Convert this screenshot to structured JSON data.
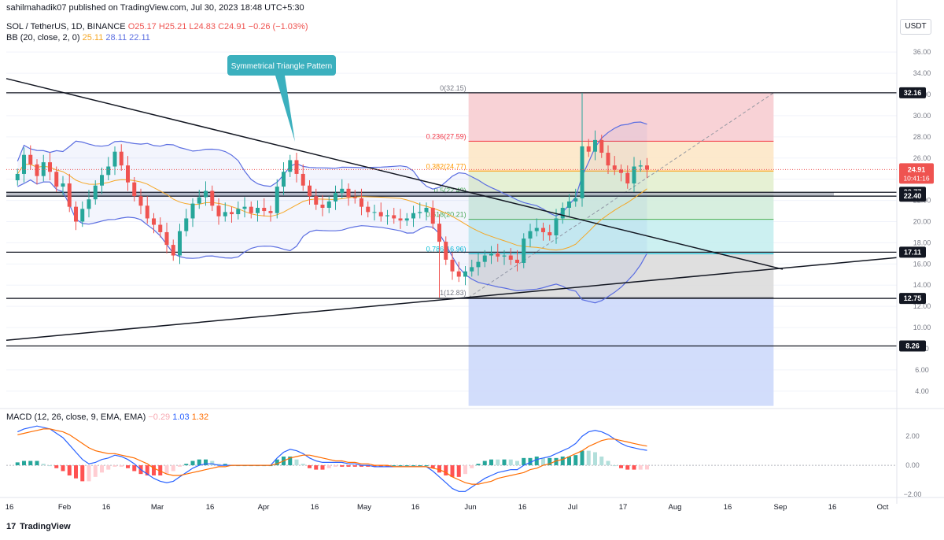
{
  "publisher": "sahilmahadik07 published on TradingView.com, Jul 30, 2023 18:48 UTC+5:30",
  "symbol": {
    "name": "SOL / TetherUS, 1D, BINANCE",
    "o": "O25.17",
    "h": "H25.21",
    "l": "L24.83",
    "c": "C24.91",
    "chg": "−0.26 (−1.03%)"
  },
  "bb_legend": {
    "name": "BB (20, close, 2, 0)",
    "basis": "25.11",
    "upper": "28.11",
    "lower": "22.11"
  },
  "macd_legend": {
    "name": "MACD (12, 26, close, 9, EMA, EMA)",
    "hist": "−0.29",
    "macd": "1.03",
    "signal": "1.32"
  },
  "currency": "USDT",
  "footer_logo": "TradingView",
  "annotation": "Symmetrical Triangle Pattern",
  "colors": {
    "up": "#26a69a",
    "down": "#ef5350",
    "bb": "#5b6ee1",
    "basis": "#f5a623",
    "macd": "#2962ff",
    "signal": "#ff6d00",
    "fib_red": "#f7cdd2",
    "fib_orange": "#fde7c7",
    "fib_green": "#d3eddb",
    "fib_teal": "#c6eef0",
    "fib_grey": "#dcdcdc",
    "fib_blue": "#cdd9fb"
  },
  "chart_data": [
    {
      "type": "candlestick",
      "ylim": [
        2.5,
        37.5
      ],
      "y_ticks": [
        "4.00",
        "6.00",
        "8.00",
        "10.00",
        "12.00",
        "14.00",
        "16.00",
        "18.00",
        "20.00",
        "22.00",
        "24.00",
        "26.00",
        "28.00",
        "30.00",
        "32.00",
        "34.00",
        "36.00"
      ],
      "x_ticks": [
        "16",
        "Feb",
        "16",
        "Mar",
        "16",
        "Apr",
        "16",
        "May",
        "16",
        "Jun",
        "16",
        "Jul",
        "17",
        "Aug",
        "16",
        "Sep",
        "16",
        "Oct"
      ],
      "horizontal_levels": [
        {
          "value": 32.16,
          "label": "32.16"
        },
        {
          "value": 22.77,
          "label": "22.77"
        },
        {
          "value": 22.4,
          "label": "22.40"
        },
        {
          "value": 17.11,
          "label": "17.11"
        },
        {
          "value": 12.75,
          "label": "12.75"
        },
        {
          "value": 8.26,
          "label": "8.26"
        }
      ],
      "last_price": {
        "value": 24.91,
        "label": "24.91",
        "countdown": "10:41:16"
      },
      "fib_levels": [
        {
          "ratio": "0",
          "price": 32.15,
          "label": "0(32.15)"
        },
        {
          "ratio": "0.236",
          "price": 27.59,
          "label": "0.236(27.59)"
        },
        {
          "ratio": "0.382",
          "price": 24.77,
          "label": "0.382(24.77)"
        },
        {
          "ratio": "0.5",
          "price": 22.49,
          "label": "0.5(22.49)"
        },
        {
          "ratio": "0.618",
          "price": 20.21,
          "label": "0.618(20.21)"
        },
        {
          "ratio": "0.786",
          "price": 16.96,
          "label": "0.786(16.96)"
        },
        {
          "ratio": "1",
          "price": 12.83,
          "label": "1(12.83)"
        }
      ],
      "trendlines": [
        {
          "name": "descending resistance",
          "from_price": 33.5,
          "to_price": 15.5
        },
        {
          "name": "ascending support",
          "from_price": 8.8,
          "to_price": 16.6
        }
      ],
      "price_path": [
        [
          1,
          24.5
        ],
        [
          2,
          26.3
        ],
        [
          3,
          25.4
        ],
        [
          4,
          24.3
        ],
        [
          5,
          25.6
        ],
        [
          6,
          24.7
        ],
        [
          7,
          23.3
        ],
        [
          8,
          23.6
        ],
        [
          9,
          21.4
        ],
        [
          10,
          20.0
        ],
        [
          11,
          21.2
        ],
        [
          12,
          22.1
        ],
        [
          13,
          23.4
        ],
        [
          14,
          24.4
        ],
        [
          15,
          25.2
        ],
        [
          16,
          26.6
        ],
        [
          17,
          25.3
        ],
        [
          18,
          23.7
        ],
        [
          19,
          22.4
        ],
        [
          20,
          21.5
        ],
        [
          21,
          20.3
        ],
        [
          22,
          19.7
        ],
        [
          23,
          19.0
        ],
        [
          24,
          17.8
        ],
        [
          25,
          16.8
        ],
        [
          26,
          19.1
        ],
        [
          27,
          20.3
        ],
        [
          28,
          21.7
        ],
        [
          29,
          22.3
        ],
        [
          30,
          22.9
        ],
        [
          31,
          21.5
        ],
        [
          32,
          20.5
        ],
        [
          33,
          20.9
        ],
        [
          34,
          20.7
        ],
        [
          35,
          21.2
        ],
        [
          36,
          21.4
        ],
        [
          37,
          20.8
        ],
        [
          38,
          21.3
        ],
        [
          39,
          21.0
        ],
        [
          40,
          20.8
        ],
        [
          41,
          23.3
        ],
        [
          42,
          24.7
        ],
        [
          43,
          25.8
        ],
        [
          44,
          24.5
        ],
        [
          45,
          23.4
        ],
        [
          46,
          22.4
        ],
        [
          47,
          21.6
        ],
        [
          48,
          21.3
        ],
        [
          49,
          21.9
        ],
        [
          50,
          22.7
        ],
        [
          51,
          23.1
        ],
        [
          52,
          22.3
        ],
        [
          53,
          22.2
        ],
        [
          54,
          21.4
        ],
        [
          55,
          20.9
        ],
        [
          56,
          20.9
        ],
        [
          57,
          20.5
        ],
        [
          58,
          20.6
        ],
        [
          59,
          20.3
        ],
        [
          60,
          20.1
        ],
        [
          61,
          20.3
        ],
        [
          62,
          20.8
        ],
        [
          63,
          20.9
        ],
        [
          64,
          21.3
        ],
        [
          65,
          19.8
        ],
        [
          66,
          18.1
        ],
        [
          67,
          16.4
        ],
        [
          68,
          15.3
        ],
        [
          69,
          14.8
        ],
        [
          70,
          15.3
        ],
        [
          71,
          15.7
        ],
        [
          72,
          16.2
        ],
        [
          73,
          16.8
        ],
        [
          74,
          17.0
        ],
        [
          75,
          16.7
        ],
        [
          76,
          16.8
        ],
        [
          77,
          16.4
        ],
        [
          78,
          16.1
        ],
        [
          79,
          18.4
        ],
        [
          80,
          19.1
        ],
        [
          81,
          19.4
        ],
        [
          82,
          19.0
        ],
        [
          83,
          18.7
        ],
        [
          84,
          20.3
        ],
        [
          85,
          21.3
        ],
        [
          86,
          21.9
        ],
        [
          87,
          22.2
        ],
        [
          88,
          27.1
        ],
        [
          89,
          26.6
        ],
        [
          90,
          27.7
        ],
        [
          91,
          26.5
        ],
        [
          92,
          25.3
        ],
        [
          93,
          24.9
        ],
        [
          94,
          24.6
        ],
        [
          95,
          23.6
        ],
        [
          96,
          25.2
        ],
        [
          97,
          25.3
        ],
        [
          98,
          24.91
        ]
      ]
    },
    {
      "type": "macd",
      "ylim": [
        -2.0,
        3.2
      ],
      "y_ticks": [
        "2.00",
        "0.00",
        "−2.00"
      ],
      "series": [
        {
          "name": "MACD",
          "values": [
            2.3,
            2.5,
            2.6,
            2.7,
            2.6,
            2.5,
            2.2,
            1.9,
            1.4,
            0.9,
            0.4,
            0.1,
            0.2,
            0.4,
            0.5,
            0.7,
            0.6,
            0.4,
            0.1,
            -0.3,
            -0.6,
            -0.9,
            -1.1,
            -1.2,
            -1.1,
            -0.8,
            -0.5,
            -0.2,
            0.0,
            0.1,
            0.1,
            0.0,
            0.0,
            0.0,
            0.0,
            0.0,
            0.0,
            0.0,
            0.0,
            0.0,
            0.5,
            0.9,
            1.1,
            1.0,
            0.8,
            0.5,
            0.3,
            0.2,
            0.2,
            0.2,
            0.2,
            0.1,
            0.1,
            0.0,
            0.0,
            -0.1,
            -0.1,
            -0.1,
            -0.1,
            -0.1,
            -0.1,
            -0.1,
            -0.1,
            -0.1,
            -0.4,
            -0.8,
            -1.2,
            -1.6,
            -1.8,
            -1.8,
            -1.5,
            -1.2,
            -0.9,
            -0.7,
            -0.5,
            -0.4,
            -0.3,
            -0.3,
            0.0,
            0.2,
            0.4,
            0.5,
            0.6,
            0.8,
            1.0,
            1.2,
            1.5,
            2.0,
            2.3,
            2.4,
            2.3,
            2.1,
            1.8,
            1.5,
            1.3,
            1.2,
            1.1,
            1.03
          ]
        },
        {
          "name": "Signal",
          "values": [
            2.1,
            2.2,
            2.3,
            2.4,
            2.5,
            2.5,
            2.4,
            2.3,
            2.1,
            1.8,
            1.5,
            1.2,
            1.0,
            0.9,
            0.8,
            0.8,
            0.7,
            0.6,
            0.5,
            0.3,
            0.1,
            -0.2,
            -0.4,
            -0.6,
            -0.7,
            -0.7,
            -0.6,
            -0.5,
            -0.4,
            -0.3,
            -0.2,
            -0.1,
            -0.1,
            0.0,
            0.0,
            0.0,
            0.0,
            0.0,
            0.0,
            0.0,
            0.1,
            0.3,
            0.5,
            0.6,
            0.7,
            0.7,
            0.6,
            0.5,
            0.4,
            0.3,
            0.3,
            0.2,
            0.2,
            0.1,
            0.1,
            0.0,
            0.0,
            0.0,
            -0.1,
            -0.1,
            -0.1,
            -0.1,
            -0.1,
            -0.1,
            -0.2,
            -0.3,
            -0.5,
            -0.8,
            -1.0,
            -1.2,
            -1.3,
            -1.3,
            -1.2,
            -1.1,
            -0.9,
            -0.8,
            -0.7,
            -0.6,
            -0.5,
            -0.3,
            -0.2,
            0.0,
            0.1,
            0.3,
            0.4,
            0.6,
            0.8,
            1.0,
            1.3,
            1.5,
            1.7,
            1.8,
            1.8,
            1.7,
            1.6,
            1.5,
            1.4,
            1.32
          ]
        }
      ]
    }
  ]
}
